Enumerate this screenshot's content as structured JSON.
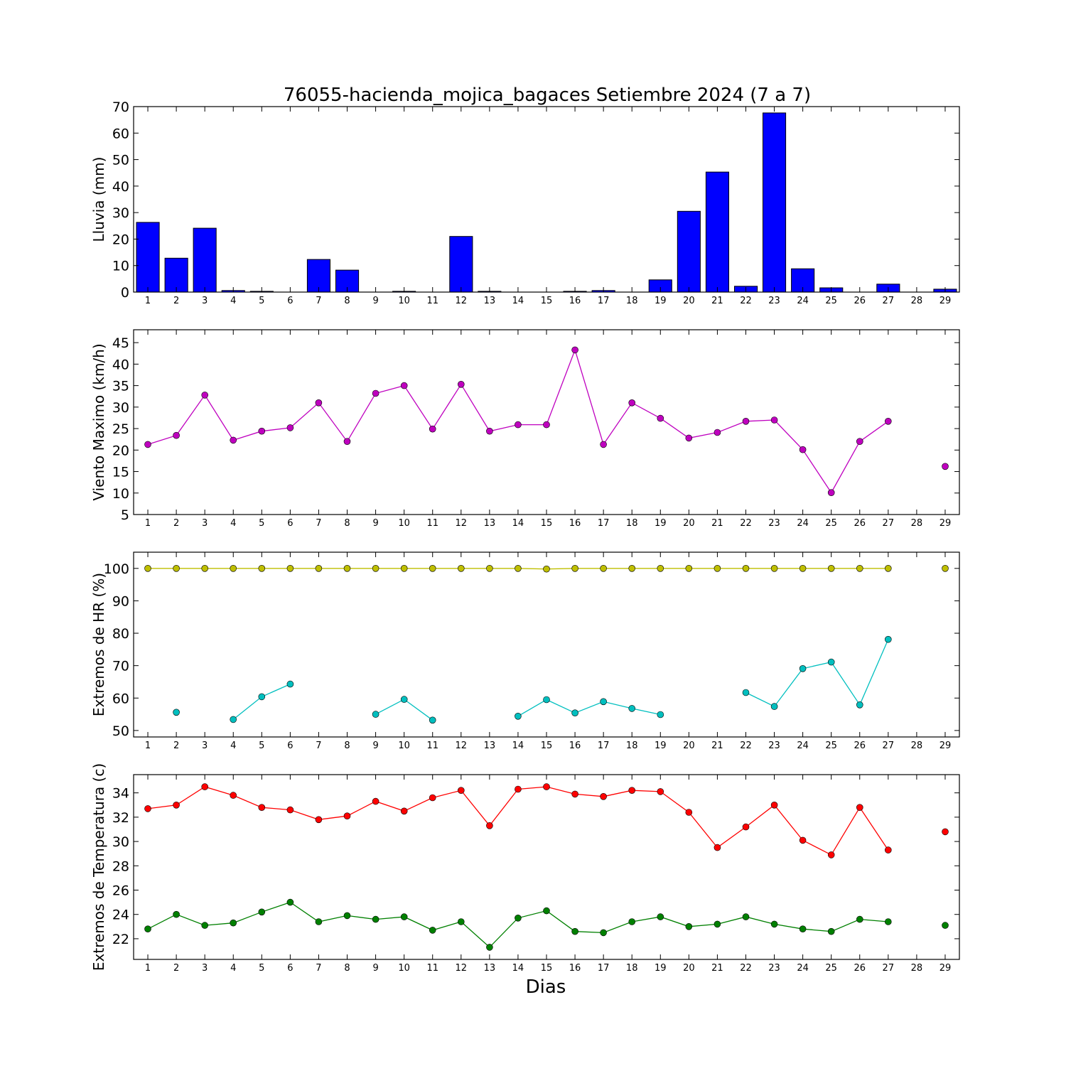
{
  "title": "76055-hacienda_mojica_bagaces Setiembre 2024  (7 a 7)",
  "xlabel": "Dias",
  "days": [
    "1",
    "2",
    "3",
    "4",
    "5",
    "6",
    "7",
    "8",
    "9",
    "10",
    "11",
    "12",
    "13",
    "14",
    "15",
    "16",
    "17",
    "18",
    "19",
    "20",
    "21",
    "22",
    "23",
    "24",
    "25",
    "26",
    "27",
    "28",
    "29"
  ],
  "chart_data": [
    {
      "type": "bar",
      "ylabel": "Lluvia (mm)",
      "ylim": [
        0,
        70
      ],
      "yticks": [
        0,
        10,
        20,
        30,
        40,
        50,
        60,
        70
      ],
      "grid": false,
      "series": [
        {
          "color": "#0000ff",
          "values": [
            26.3,
            12.8,
            24.1,
            0.6,
            0.3,
            0.0,
            12.3,
            8.3,
            0.0,
            0.3,
            0.0,
            21.0,
            0.3,
            0.0,
            0.0,
            0.3,
            0.6,
            0.0,
            4.6,
            30.5,
            45.3,
            2.2,
            67.6,
            8.8,
            1.6,
            0.0,
            3.0,
            0.0,
            1.1
          ]
        }
      ]
    },
    {
      "type": "line",
      "ylabel": "Viento Maximo (km/h)",
      "ylim": [
        5,
        48
      ],
      "yticks": [
        5,
        10,
        15,
        20,
        25,
        30,
        35,
        40,
        45
      ],
      "grid": false,
      "series": [
        {
          "color": "#bf00bf",
          "values": [
            21.3,
            23.4,
            32.8,
            22.3,
            24.4,
            25.2,
            31.0,
            22.0,
            33.2,
            35.0,
            24.9,
            35.3,
            24.4,
            25.9,
            25.9,
            43.3,
            21.3,
            31.0,
            27.4,
            22.8,
            24.1,
            26.7,
            27.0,
            20.1,
            10.1,
            22.0,
            26.7,
            null,
            16.2
          ]
        }
      ]
    },
    {
      "type": "line",
      "ylabel": "Extremos de HR (%)",
      "ylim": [
        48,
        105
      ],
      "yticks": [
        50,
        60,
        70,
        80,
        90,
        100
      ],
      "grid": false,
      "series": [
        {
          "color": "#bfbf00",
          "values": [
            100,
            100,
            100,
            100,
            100,
            100,
            100,
            100,
            100,
            100,
            100,
            100,
            100,
            100,
            99.8,
            100,
            100,
            100,
            100,
            100,
            100,
            100,
            100,
            100,
            100,
            100,
            100,
            null,
            100
          ]
        },
        {
          "color": "#00bfbf",
          "values": [
            null,
            55.6,
            null,
            53.4,
            60.4,
            64.3,
            null,
            null,
            55.0,
            59.6,
            53.2,
            null,
            null,
            54.4,
            59.5,
            55.4,
            58.9,
            56.8,
            54.9,
            null,
            null,
            61.7,
            57.4,
            69.1,
            71.1,
            57.9,
            78.1,
            null,
            null
          ]
        }
      ]
    },
    {
      "type": "line",
      "ylabel": "Extremos de Temperatura (c)",
      "ylim": [
        20.3,
        35.5
      ],
      "yticks": [
        22,
        24,
        26,
        28,
        30,
        32,
        34
      ],
      "grid": false,
      "series": [
        {
          "color": "#ff0000",
          "values": [
            32.7,
            33.0,
            34.5,
            33.8,
            32.8,
            32.6,
            31.8,
            32.1,
            33.3,
            32.5,
            33.6,
            34.2,
            31.3,
            34.3,
            34.5,
            33.9,
            33.7,
            34.2,
            34.1,
            32.4,
            29.5,
            31.2,
            33.0,
            30.1,
            28.9,
            32.8,
            29.3,
            null,
            30.8
          ]
        },
        {
          "color": "#008000",
          "values": [
            22.8,
            24.0,
            23.1,
            23.3,
            24.2,
            25.0,
            23.4,
            23.9,
            23.6,
            23.8,
            22.7,
            23.4,
            21.3,
            23.7,
            24.3,
            22.6,
            22.5,
            23.4,
            23.8,
            23.0,
            23.2,
            23.8,
            23.2,
            22.8,
            22.6,
            23.6,
            23.4,
            null,
            23.1
          ]
        }
      ]
    }
  ]
}
